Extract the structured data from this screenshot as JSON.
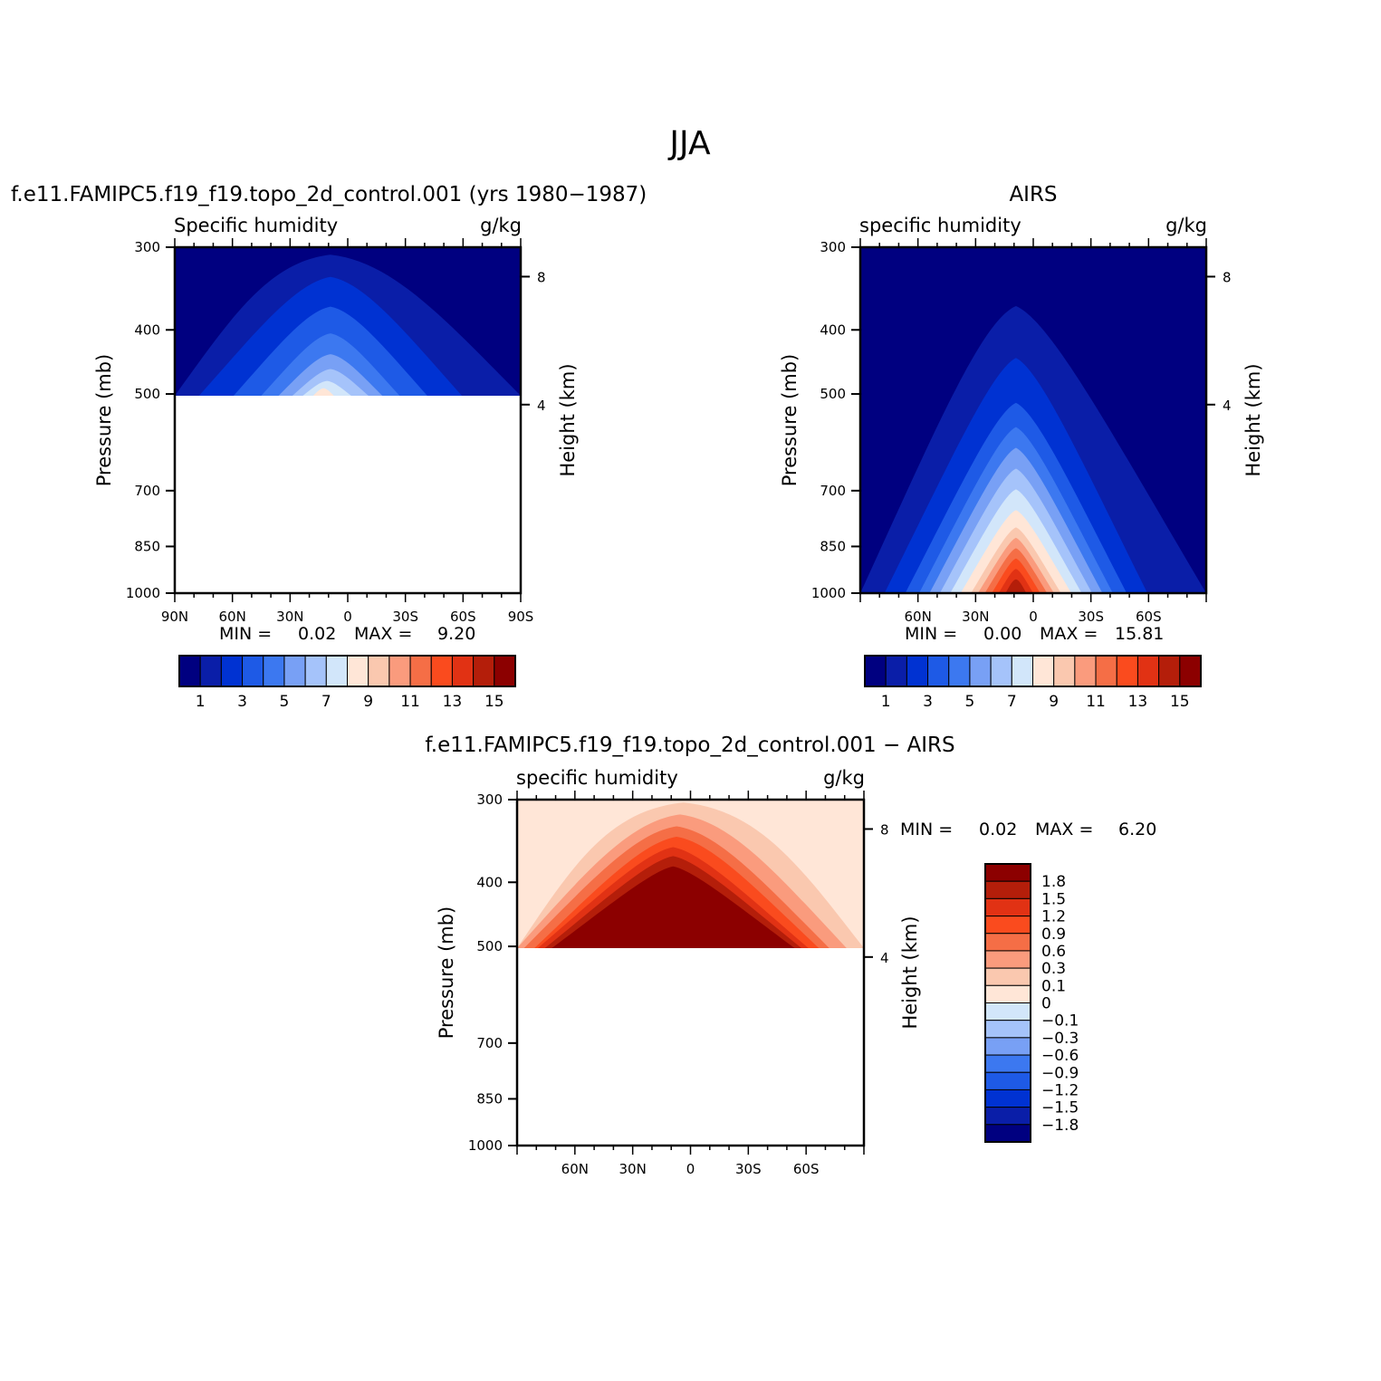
{
  "main_title": "JJA",
  "colors": [
    "#000080",
    "#0a1ea8",
    "#0032d2",
    "#1e5ae6",
    "#3c78f0",
    "#78a0f5",
    "#a5c3fa",
    "#d2e6fa",
    "#ffe6d7",
    "#fac8af",
    "#fa9b7d",
    "#f56e46",
    "#fa4b1e",
    "#e13214",
    "#b41e0a",
    "#8c0000"
  ],
  "colorbar_labels": [
    "1",
    "3",
    "5",
    "7",
    "9",
    "11",
    "13",
    "15"
  ],
  "diff_labels": [
    "1.8",
    "1.5",
    "1.2",
    "0.9",
    "0.6",
    "0.3",
    "0.1",
    "0",
    "−0.1",
    "−0.3",
    "−0.6",
    "−0.9",
    "−1.2",
    "−1.5",
    "−1.8"
  ],
  "chart_data": [
    {
      "type": "contour",
      "title": "f.e11.FAMIPC5.f19_f19.topo_2d_control.001 (yrs 1980−1987)",
      "left_label": "Specific humidity",
      "right_label": "g/kg",
      "ylabel": "Pressure (mb)",
      "y2label": "Height (km)",
      "yticks": [
        "300",
        "400",
        "500",
        "700",
        "850",
        "1000"
      ],
      "y2ticks": [
        "8",
        "4"
      ],
      "xticks": [
        "90N",
        "60N",
        "30N",
        "0",
        "30S",
        "60S",
        "90S"
      ],
      "min_label": "MIN =",
      "min_value": "0.02",
      "max_label": "MAX =",
      "max_value": "9.20",
      "data_bottom_mb": 600
    },
    {
      "type": "contour",
      "title": "AIRS",
      "left_label": "specific humidity",
      "right_label": "g/kg",
      "ylabel": "Pressure (mb)",
      "y2label": "Height (km)",
      "yticks": [
        "300",
        "400",
        "500",
        "700",
        "850",
        "1000"
      ],
      "y2ticks": [
        "8",
        "4"
      ],
      "xticks": [
        "60N",
        "30N",
        "0",
        "30S",
        "60S"
      ],
      "min_label": "MIN =",
      "min_value": "0.00",
      "max_label": "MAX =",
      "max_value": "15.81",
      "data_bottom_mb": 1000
    },
    {
      "type": "contour",
      "title": "f.e11.FAMIPC5.f19_f19.topo_2d_control.001 − AIRS",
      "left_label": "specific humidity",
      "right_label": "g/kg",
      "ylabel": "Pressure (mb)",
      "y2label": "Height (km)",
      "yticks": [
        "300",
        "400",
        "500",
        "700",
        "850",
        "1000"
      ],
      "y2ticks": [
        "8",
        "4"
      ],
      "xticks": [
        "60N",
        "30N",
        "0",
        "30S",
        "60S"
      ],
      "min_label": "MIN =",
      "min_value": "0.02",
      "max_label": "MAX =",
      "max_value": "6.20",
      "data_bottom_mb": 600
    }
  ]
}
